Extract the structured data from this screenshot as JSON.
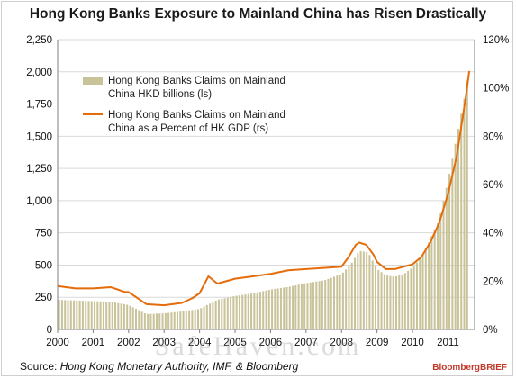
{
  "title": "Hong Kong Banks Exposure to Mainland China has Risen Drastically",
  "source": {
    "prefix": "Source: ",
    "text": "Hong Kong Monetary Authority, IMF, & Bloomberg"
  },
  "brand": "BloombergBRIEF",
  "watermark": "SafeHaven.com",
  "colors": {
    "bar": "#c9c39a",
    "line": "#e46c0a",
    "grid": "#d9d9d9",
    "axis": "#7f7f7f"
  },
  "chart_data": {
    "type": "bar",
    "title": "Hong Kong Banks Exposure to Mainland China has Risen Drastically",
    "x_tick_labels": [
      "2000",
      "2001",
      "2002",
      "2003",
      "2004",
      "2005",
      "2006",
      "2007",
      "2008",
      "2009",
      "2010",
      "2011"
    ],
    "y_left": {
      "ylim": [
        0,
        2250
      ],
      "ticks": [
        "0",
        "250",
        "500",
        "750",
        "1,000",
        "1,250",
        "1,500",
        "1,750",
        "2,000",
        "2,250"
      ]
    },
    "y_right": {
      "ylim": [
        0,
        120
      ],
      "ticks": [
        "0%",
        "20%",
        "40%",
        "60%",
        "80%",
        "100%",
        "120%"
      ]
    },
    "grid": true,
    "legend_position": "top-left",
    "series": [
      {
        "name": "Hong Kong Banks Claims on Mainland China HKD billions (ls)",
        "legend_lines": [
          "Hong Kong Banks Claims on Mainland",
          "China HKD billions (ls)"
        ],
        "type": "bar",
        "axis": "left",
        "x": [
          2000.0,
          2000.5,
          2001.0,
          2001.5,
          2002.0,
          2002.5,
          2003.0,
          2003.5,
          2004.0,
          2004.5,
          2005.0,
          2005.5,
          2006.0,
          2006.5,
          2007.0,
          2007.5,
          2008.0,
          2008.25,
          2008.5,
          2008.75,
          2009.0,
          2009.25,
          2009.5,
          2009.75,
          2010.0,
          2010.25,
          2010.5,
          2010.75,
          2011.0,
          2011.25,
          2011.5,
          2011.6
        ],
        "values": [
          230,
          225,
          220,
          215,
          190,
          120,
          125,
          140,
          160,
          230,
          260,
          280,
          310,
          330,
          360,
          380,
          430,
          500,
          610,
          600,
          470,
          420,
          410,
          430,
          480,
          560,
          700,
          850,
          1150,
          1500,
          1850,
          2050
        ]
      },
      {
        "name": "Hong Kong Banks Claims on Mainland China as a Percent of HK GDP (rs)",
        "legend_lines": [
          "Hong Kong Banks Claims on Mainland",
          "China as a Percent of HK GDP (rs)"
        ],
        "type": "line",
        "axis": "right",
        "x": [
          2000.0,
          2000.5,
          2001.0,
          2001.5,
          2001.9,
          2002.0,
          2002.5,
          2003.0,
          2003.5,
          2003.8,
          2004.0,
          2004.25,
          2004.5,
          2005.0,
          2005.5,
          2006.0,
          2006.5,
          2007.0,
          2007.5,
          2008.0,
          2008.2,
          2008.4,
          2008.5,
          2008.7,
          2008.9,
          2009.0,
          2009.25,
          2009.5,
          2009.75,
          2010.0,
          2010.25,
          2010.5,
          2010.75,
          2011.0,
          2011.25,
          2011.5,
          2011.6
        ],
        "values": [
          18,
          17,
          17,
          17.5,
          15.5,
          15.5,
          10.5,
          10,
          11,
          13,
          15,
          22,
          19,
          21,
          22,
          23,
          24.5,
          25,
          25.5,
          26,
          30,
          35,
          36,
          35,
          31,
          28,
          25,
          25,
          26,
          27,
          30,
          36,
          44,
          56,
          72,
          96,
          107
        ]
      }
    ]
  }
}
